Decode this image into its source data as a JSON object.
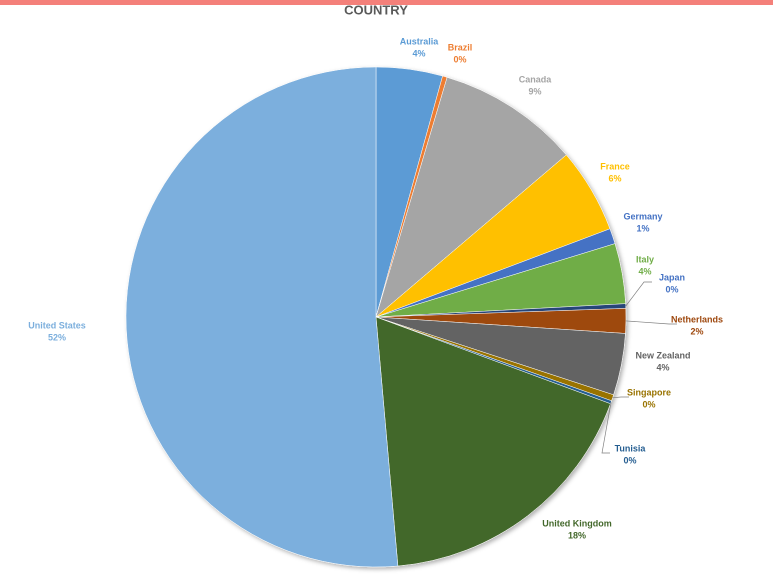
{
  "chart_data": {
    "type": "pie",
    "title": "COUNTRY",
    "categories": [
      "Australia",
      "Brazil",
      "Canada",
      "France",
      "Germany",
      "Italy",
      "Japan",
      "Netherlands",
      "New Zealand",
      "Singapore",
      "Tunisia",
      "United Kingdom",
      "United States"
    ],
    "values": [
      4.3,
      0.3,
      9.2,
      5.5,
      1.0,
      3.9,
      0.3,
      1.6,
      4.0,
      0.4,
      0.2,
      18,
      51.5
    ],
    "value_labels": [
      "4%",
      "0%",
      "9%",
      "6%",
      "1%",
      "4%",
      "0%",
      "2%",
      "4%",
      "0%",
      "0%",
      "18%",
      "52%"
    ],
    "colors": [
      "#5b9bd5",
      "#ed7d31",
      "#a5a5a5",
      "#ffc000",
      "#4472c4",
      "#70ad47",
      "#264478",
      "#9e480e",
      "#636363",
      "#997300",
      "#255e91",
      "#43682b",
      "#7cafdd"
    ]
  }
}
